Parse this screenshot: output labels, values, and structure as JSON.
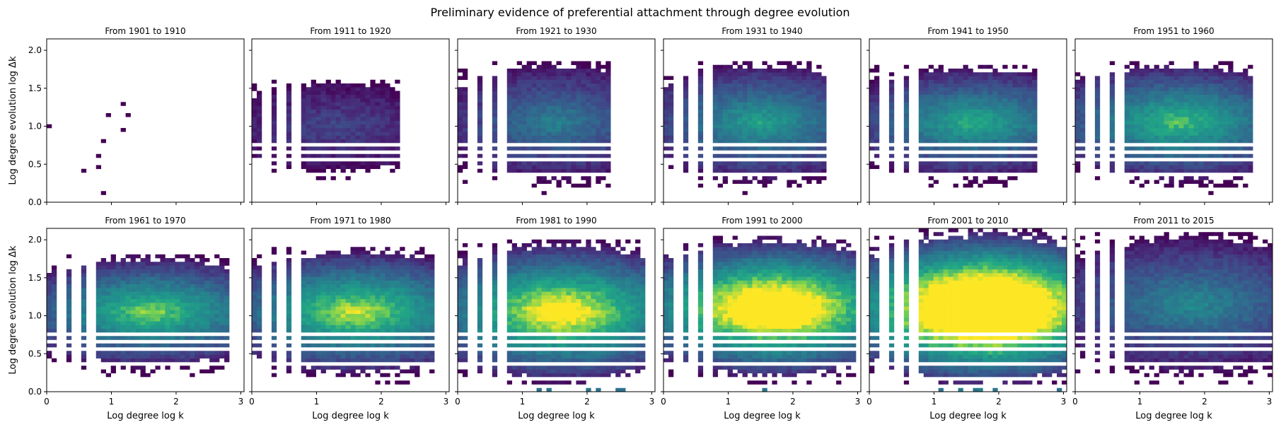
{
  "chart_data": {
    "type": "heatmap",
    "title": "Preliminary evidence of preferential attachment through degree evolution",
    "xlabel": "Log degree log k",
    "ylabel": "Log degree evolution log Δk",
    "xlim": [
      0,
      3.05
    ],
    "ylim": [
      0,
      2.15
    ],
    "xticks": [
      "0",
      "1",
      "2",
      "3"
    ],
    "yticks": [
      "0.0",
      "0.5",
      "1.0",
      "1.5",
      "2.0"
    ],
    "colormap": "viridis",
    "grid": false,
    "panels": [
      {
        "title": "From 1901 to 1910",
        "intensity": 0.0,
        "reach_x": 1.4,
        "reach_y": 1.3,
        "center_x": 1.0,
        "center_y": 0.8
      },
      {
        "title": "From 1911 to 1920",
        "intensity": 0.28,
        "reach_x": 2.3,
        "reach_y": 1.6,
        "center_x": 1.3,
        "center_y": 1.0
      },
      {
        "title": "From 1921 to 1930",
        "intensity": 0.55,
        "reach_x": 2.4,
        "reach_y": 1.85,
        "center_x": 1.5,
        "center_y": 1.05
      },
      {
        "title": "From 1931 to 1940",
        "intensity": 0.72,
        "reach_x": 2.5,
        "reach_y": 1.85,
        "center_x": 1.5,
        "center_y": 1.05
      },
      {
        "title": "From 1941 to 1950",
        "intensity": 0.78,
        "reach_x": 2.6,
        "reach_y": 1.8,
        "center_x": 1.6,
        "center_y": 1.05
      },
      {
        "title": "From 1951 to 1960",
        "intensity": 0.85,
        "reach_x": 2.75,
        "reach_y": 1.85,
        "center_x": 1.6,
        "center_y": 1.05
      },
      {
        "title": "From 1961 to 1970",
        "intensity": 0.92,
        "reach_x": 2.8,
        "reach_y": 1.8,
        "center_x": 1.6,
        "center_y": 1.05
      },
      {
        "title": "From 1971 to 1980",
        "intensity": 1.0,
        "reach_x": 2.85,
        "reach_y": 1.9,
        "center_x": 1.6,
        "center_y": 1.05
      },
      {
        "title": "From 1981 to 1990",
        "intensity": 1.15,
        "reach_x": 2.9,
        "reach_y": 2.0,
        "center_x": 1.6,
        "center_y": 1.05
      },
      {
        "title": "From 1991 to 2000",
        "intensity": 1.35,
        "reach_x": 3.0,
        "reach_y": 2.05,
        "center_x": 1.7,
        "center_y": 1.1
      },
      {
        "title": "From 2001 to 2010",
        "intensity": 1.6,
        "reach_x": 3.05,
        "reach_y": 2.15,
        "center_x": 1.8,
        "center_y": 1.1
      },
      {
        "title": "From 2011 to 2015",
        "intensity": 0.6,
        "reach_x": 3.05,
        "reach_y": 2.1,
        "center_x": 1.8,
        "center_y": 1.15
      }
    ]
  }
}
